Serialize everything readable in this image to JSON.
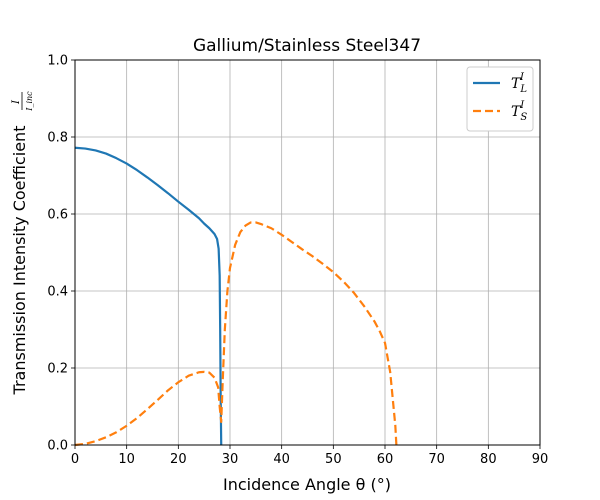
{
  "chart_data": {
    "type": "line",
    "title": "Gallium/Stainless Steel347",
    "xlabel": "Incidence Angle θ (°)",
    "ylabel": "Transmission Intensity Coefficient",
    "ylabel_fraction": {
      "numerator": "I",
      "denominator": "I_inc"
    },
    "xlim": [
      0,
      90
    ],
    "ylim": [
      0,
      1.0
    ],
    "xticks": [
      "0",
      "10",
      "20",
      "30",
      "40",
      "50",
      "60",
      "70",
      "80",
      "90"
    ],
    "yticks": [
      "0.0",
      "0.2",
      "0.4",
      "0.6",
      "0.8",
      "1.0"
    ],
    "grid": true,
    "legend_position": "top-right",
    "series": [
      {
        "name": "T_L^I",
        "label_main": "T",
        "label_sub": "L",
        "label_sup": "I",
        "color": "#1f77b4",
        "style": "solid",
        "points": [
          [
            0,
            0.772
          ],
          [
            2,
            0.77
          ],
          [
            4,
            0.765
          ],
          [
            6,
            0.757
          ],
          [
            8,
            0.745
          ],
          [
            10,
            0.731
          ],
          [
            12,
            0.714
          ],
          [
            14,
            0.695
          ],
          [
            16,
            0.675
          ],
          [
            18,
            0.654
          ],
          [
            20,
            0.632
          ],
          [
            22,
            0.611
          ],
          [
            24,
            0.589
          ],
          [
            25,
            0.575
          ],
          [
            26,
            0.563
          ],
          [
            27,
            0.548
          ],
          [
            27.5,
            0.535
          ],
          [
            27.8,
            0.51
          ],
          [
            28,
            0.44
          ],
          [
            28.1,
            0.3
          ],
          [
            28.2,
            0.12
          ],
          [
            28.3,
            0.0
          ]
        ]
      },
      {
        "name": "T_S^I",
        "label_main": "T",
        "label_sub": "S",
        "label_sup": "I",
        "color": "#ff7f0e",
        "style": "dashed",
        "points": [
          [
            0,
            0.0
          ],
          [
            2,
            0.003
          ],
          [
            4,
            0.01
          ],
          [
            6,
            0.02
          ],
          [
            8,
            0.033
          ],
          [
            10,
            0.05
          ],
          [
            12,
            0.07
          ],
          [
            14,
            0.093
          ],
          [
            16,
            0.117
          ],
          [
            18,
            0.142
          ],
          [
            20,
            0.163
          ],
          [
            22,
            0.18
          ],
          [
            24,
            0.189
          ],
          [
            25,
            0.19
          ],
          [
            26,
            0.188
          ],
          [
            27,
            0.175
          ],
          [
            27.7,
            0.15
          ],
          [
            28.0,
            0.1
          ],
          [
            28.3,
            0.06
          ],
          [
            28.6,
            0.17
          ],
          [
            29.0,
            0.3
          ],
          [
            29.5,
            0.4
          ],
          [
            30,
            0.46
          ],
          [
            31,
            0.52
          ],
          [
            32,
            0.553
          ],
          [
            33,
            0.57
          ],
          [
            34,
            0.578
          ],
          [
            35,
            0.578
          ],
          [
            36,
            0.574
          ],
          [
            38,
            0.563
          ],
          [
            40,
            0.546
          ],
          [
            42,
            0.527
          ],
          [
            44,
            0.508
          ],
          [
            46,
            0.49
          ],
          [
            48,
            0.47
          ],
          [
            50,
            0.449
          ],
          [
            52,
            0.424
          ],
          [
            54,
            0.395
          ],
          [
            56,
            0.36
          ],
          [
            58,
            0.32
          ],
          [
            59,
            0.295
          ],
          [
            60,
            0.265
          ],
          [
            61,
            0.19
          ],
          [
            61.5,
            0.12
          ],
          [
            62,
            0.05
          ],
          [
            62.2,
            0.0
          ]
        ]
      }
    ]
  }
}
